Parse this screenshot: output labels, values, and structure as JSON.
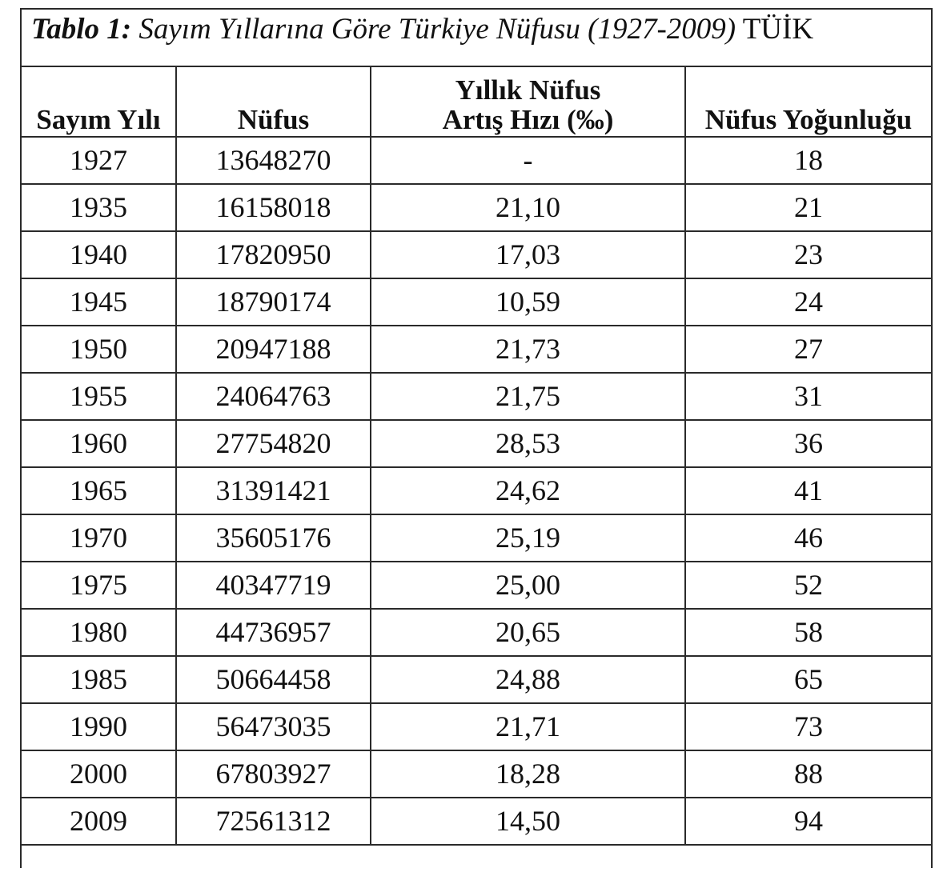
{
  "caption": {
    "lead": "Tablo 1:",
    "text": "Sayım Yıllarına Göre Türkiye Nüfusu (1927-2009)",
    "source": "TÜİK"
  },
  "table": {
    "headers": {
      "year": "Sayım Yılı",
      "population": "Nüfus",
      "growth_line1": "Yıllık Nüfus",
      "growth_line2": "Artış Hızı (‰)",
      "density": "Nüfus Yoğunluğu"
    },
    "rows": [
      {
        "year": "1927",
        "population": "13648270",
        "growth": "-",
        "density": "18"
      },
      {
        "year": "1935",
        "population": "16158018",
        "growth": "21,10",
        "density": "21"
      },
      {
        "year": "1940",
        "population": "17820950",
        "growth": "17,03",
        "density": "23"
      },
      {
        "year": "1945",
        "population": "18790174",
        "growth": "10,59",
        "density": "24"
      },
      {
        "year": "1950",
        "population": "20947188",
        "growth": "21,73",
        "density": "27"
      },
      {
        "year": "1955",
        "population": "24064763",
        "growth": "21,75",
        "density": "31"
      },
      {
        "year": "1960",
        "population": "27754820",
        "growth": "28,53",
        "density": "36"
      },
      {
        "year": "1965",
        "population": "31391421",
        "growth": "24,62",
        "density": "41"
      },
      {
        "year": "1970",
        "population": "35605176",
        "growth": "25,19",
        "density": "46"
      },
      {
        "year": "1975",
        "population": "40347719",
        "growth": "25,00",
        "density": "52"
      },
      {
        "year": "1980",
        "population": "44736957",
        "growth": "20,65",
        "density": "58"
      },
      {
        "year": "1985",
        "population": "50664458",
        "growth": "24,88",
        "density": "65"
      },
      {
        "year": "1990",
        "population": "56473035",
        "growth": "21,71",
        "density": "73"
      },
      {
        "year": "2000",
        "population": "67803927",
        "growth": "18,28",
        "density": "88"
      },
      {
        "year": "2009",
        "population": "72561312",
        "growth": "14,50",
        "density": "94"
      }
    ]
  }
}
